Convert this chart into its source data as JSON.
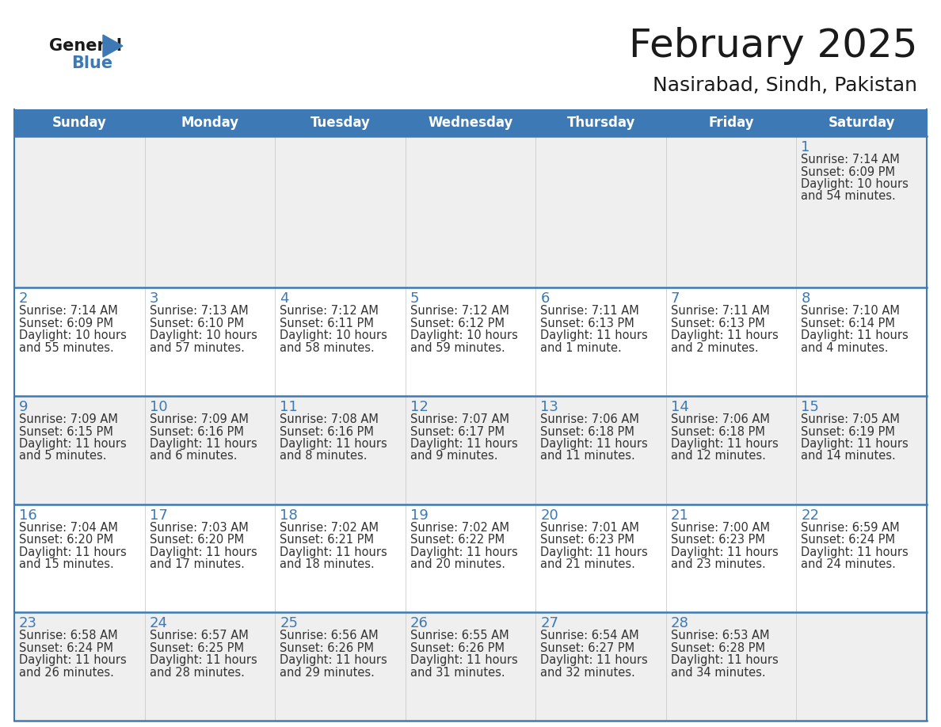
{
  "title": "February 2025",
  "subtitle": "Nasirabad, Sindh, Pakistan",
  "header_bg": "#3D7AB5",
  "header_text_color": "#FFFFFF",
  "cell_bg_light": "#EFEFEF",
  "cell_bg_white": "#FFFFFF",
  "grid_line_color": "#3D7AB5",
  "day_number_color": "#3D7AB5",
  "info_text_color": "#333333",
  "background_color": "#FFFFFF",
  "day_names": [
    "Sunday",
    "Monday",
    "Tuesday",
    "Wednesday",
    "Thursday",
    "Friday",
    "Saturday"
  ],
  "days": [
    {
      "date": 1,
      "col": 6,
      "row": 0,
      "sunrise": "7:14 AM",
      "sunset": "6:09 PM",
      "daylight": "10 hours and 54 minutes"
    },
    {
      "date": 2,
      "col": 0,
      "row": 1,
      "sunrise": "7:14 AM",
      "sunset": "6:09 PM",
      "daylight": "10 hours and 55 minutes"
    },
    {
      "date": 3,
      "col": 1,
      "row": 1,
      "sunrise": "7:13 AM",
      "sunset": "6:10 PM",
      "daylight": "10 hours and 57 minutes"
    },
    {
      "date": 4,
      "col": 2,
      "row": 1,
      "sunrise": "7:12 AM",
      "sunset": "6:11 PM",
      "daylight": "10 hours and 58 minutes"
    },
    {
      "date": 5,
      "col": 3,
      "row": 1,
      "sunrise": "7:12 AM",
      "sunset": "6:12 PM",
      "daylight": "10 hours and 59 minutes"
    },
    {
      "date": 6,
      "col": 4,
      "row": 1,
      "sunrise": "7:11 AM",
      "sunset": "6:13 PM",
      "daylight": "11 hours and 1 minute"
    },
    {
      "date": 7,
      "col": 5,
      "row": 1,
      "sunrise": "7:11 AM",
      "sunset": "6:13 PM",
      "daylight": "11 hours and 2 minutes"
    },
    {
      "date": 8,
      "col": 6,
      "row": 1,
      "sunrise": "7:10 AM",
      "sunset": "6:14 PM",
      "daylight": "11 hours and 4 minutes"
    },
    {
      "date": 9,
      "col": 0,
      "row": 2,
      "sunrise": "7:09 AM",
      "sunset": "6:15 PM",
      "daylight": "11 hours and 5 minutes"
    },
    {
      "date": 10,
      "col": 1,
      "row": 2,
      "sunrise": "7:09 AM",
      "sunset": "6:16 PM",
      "daylight": "11 hours and 6 minutes"
    },
    {
      "date": 11,
      "col": 2,
      "row": 2,
      "sunrise": "7:08 AM",
      "sunset": "6:16 PM",
      "daylight": "11 hours and 8 minutes"
    },
    {
      "date": 12,
      "col": 3,
      "row": 2,
      "sunrise": "7:07 AM",
      "sunset": "6:17 PM",
      "daylight": "11 hours and 9 minutes"
    },
    {
      "date": 13,
      "col": 4,
      "row": 2,
      "sunrise": "7:06 AM",
      "sunset": "6:18 PM",
      "daylight": "11 hours and 11 minutes"
    },
    {
      "date": 14,
      "col": 5,
      "row": 2,
      "sunrise": "7:06 AM",
      "sunset": "6:18 PM",
      "daylight": "11 hours and 12 minutes"
    },
    {
      "date": 15,
      "col": 6,
      "row": 2,
      "sunrise": "7:05 AM",
      "sunset": "6:19 PM",
      "daylight": "11 hours and 14 minutes"
    },
    {
      "date": 16,
      "col": 0,
      "row": 3,
      "sunrise": "7:04 AM",
      "sunset": "6:20 PM",
      "daylight": "11 hours and 15 minutes"
    },
    {
      "date": 17,
      "col": 1,
      "row": 3,
      "sunrise": "7:03 AM",
      "sunset": "6:20 PM",
      "daylight": "11 hours and 17 minutes"
    },
    {
      "date": 18,
      "col": 2,
      "row": 3,
      "sunrise": "7:02 AM",
      "sunset": "6:21 PM",
      "daylight": "11 hours and 18 minutes"
    },
    {
      "date": 19,
      "col": 3,
      "row": 3,
      "sunrise": "7:02 AM",
      "sunset": "6:22 PM",
      "daylight": "11 hours and 20 minutes"
    },
    {
      "date": 20,
      "col": 4,
      "row": 3,
      "sunrise": "7:01 AM",
      "sunset": "6:23 PM",
      "daylight": "11 hours and 21 minutes"
    },
    {
      "date": 21,
      "col": 5,
      "row": 3,
      "sunrise": "7:00 AM",
      "sunset": "6:23 PM",
      "daylight": "11 hours and 23 minutes"
    },
    {
      "date": 22,
      "col": 6,
      "row": 3,
      "sunrise": "6:59 AM",
      "sunset": "6:24 PM",
      "daylight": "11 hours and 24 minutes"
    },
    {
      "date": 23,
      "col": 0,
      "row": 4,
      "sunrise": "6:58 AM",
      "sunset": "6:24 PM",
      "daylight": "11 hours and 26 minutes"
    },
    {
      "date": 24,
      "col": 1,
      "row": 4,
      "sunrise": "6:57 AM",
      "sunset": "6:25 PM",
      "daylight": "11 hours and 28 minutes"
    },
    {
      "date": 25,
      "col": 2,
      "row": 4,
      "sunrise": "6:56 AM",
      "sunset": "6:26 PM",
      "daylight": "11 hours and 29 minutes"
    },
    {
      "date": 26,
      "col": 3,
      "row": 4,
      "sunrise": "6:55 AM",
      "sunset": "6:26 PM",
      "daylight": "11 hours and 31 minutes"
    },
    {
      "date": 27,
      "col": 4,
      "row": 4,
      "sunrise": "6:54 AM",
      "sunset": "6:27 PM",
      "daylight": "11 hours and 32 minutes"
    },
    {
      "date": 28,
      "col": 5,
      "row": 4,
      "sunrise": "6:53 AM",
      "sunset": "6:28 PM",
      "daylight": "11 hours and 34 minutes"
    }
  ]
}
